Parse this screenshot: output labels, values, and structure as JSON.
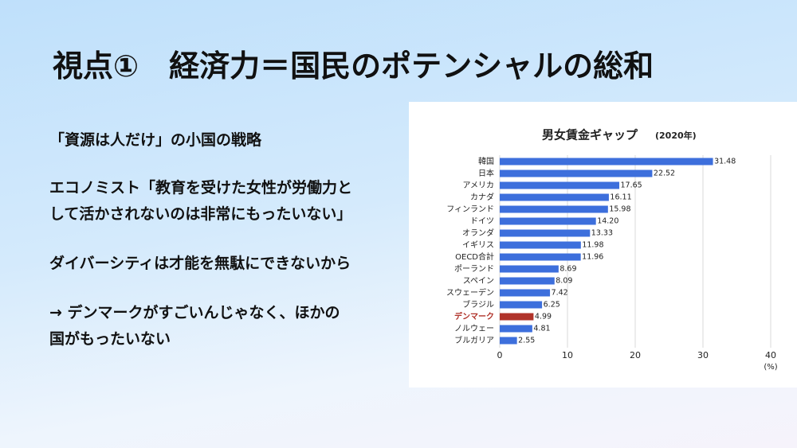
{
  "slide": {
    "title": "視点①　経済力＝国民のポテンシャルの総和",
    "lines": [
      "「資源は人だけ」の小国の戦略",
      "エコノミスト「教育を受けた女性が労働力と",
      "して活かされないのは非常にもったいない」",
      "ダイバーシティは才能を無駄にできないから",
      "→ デンマークがすごいんじゃなく、ほかの",
      "国がもったいない"
    ]
  },
  "chart_data": {
    "type": "hbar",
    "title": "男女賃金ギャップ",
    "subtitle": "(2020年)",
    "categories": [
      "韓国",
      "日本",
      "アメリカ",
      "カナダ",
      "フィンランド",
      "ドイツ",
      "オランダ",
      "イギリス",
      "OECD合計",
      "ポーランド",
      "スペイン",
      "スウェーデン",
      "ブラジル",
      "デンマーク",
      "ノルウェー",
      "ブルガリア"
    ],
    "values": [
      31.48,
      22.52,
      17.65,
      16.11,
      15.98,
      14.2,
      13.33,
      11.98,
      11.96,
      8.69,
      8.09,
      7.42,
      6.25,
      4.99,
      4.81,
      2.55
    ],
    "value_labels": [
      "31.48",
      "22.52",
      "17.65",
      "16.11",
      "15.98",
      "14.20",
      "13.33",
      "11.98",
      "11.96",
      "8.69",
      "8.09",
      "7.42",
      "6.25",
      "4.99",
      "4.81",
      "2.55"
    ],
    "colors": [
      "#3d6fdc",
      "#3d6fdc",
      "#3d6fdc",
      "#3d6fdc",
      "#3d6fdc",
      "#3d6fdc",
      "#3d6fdc",
      "#3d6fdc",
      "#3d6fdc",
      "#3d6fdc",
      "#3d6fdc",
      "#3d6fdc",
      "#3d6fdc",
      "#b0332a",
      "#3d6fdc",
      "#3d6fdc"
    ],
    "xlim": [
      0,
      40
    ],
    "xticks": [
      0,
      10,
      20,
      30,
      40
    ],
    "x_unit": "(%)",
    "grid": true
  }
}
